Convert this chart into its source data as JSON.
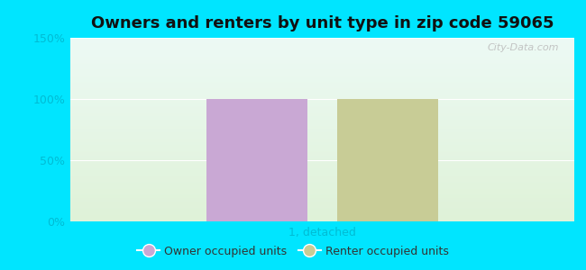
{
  "title": "Owners and renters by unit type in zip code 59065",
  "categories": [
    "1, detached"
  ],
  "owner_values": [
    100
  ],
  "renter_values": [
    100
  ],
  "owner_color": "#c9a8d4",
  "renter_color": "#c8cc96",
  "ylim": [
    0,
    150
  ],
  "yticks": [
    0,
    50,
    100,
    150
  ],
  "ytick_labels": [
    "0%",
    "50%",
    "100%",
    "150%"
  ],
  "title_fontsize": 13,
  "legend_owner": "Owner occupied units",
  "legend_renter": "Renter occupied units",
  "watermark": "City-Data.com",
  "outer_bg": "#00e5ff",
  "plot_bg_top": "#edfaf5",
  "plot_bg_bottom": "#dff2d8",
  "tick_color": "#00bcd4",
  "label_color": "#00bcd4",
  "bar_width": 0.2,
  "bar_gap": 0.06
}
